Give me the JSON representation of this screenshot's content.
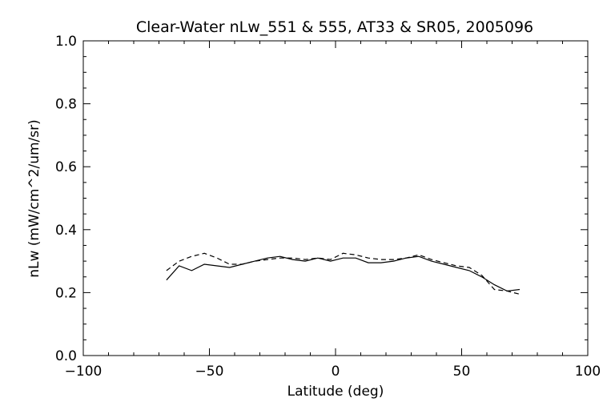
{
  "chart_data": {
    "type": "line",
    "title": "Clear-Water nLw_551 & 555, AT33 & SR05, 2005096",
    "xlabel": "Latitude (deg)",
    "ylabel": "nLw (mW/cm^2/um/sr)",
    "xlim": [
      -100,
      100
    ],
    "ylim": [
      0.0,
      1.0
    ],
    "x_ticks": [
      -100,
      -50,
      0,
      50,
      100
    ],
    "y_ticks": [
      0.0,
      0.2,
      0.4,
      0.6,
      0.8,
      1.0
    ],
    "x_tick_labels": [
      "−100",
      "−50",
      "0",
      "50",
      "100"
    ],
    "y_tick_labels": [
      "0.0",
      "0.2",
      "0.4",
      "0.6",
      "0.8",
      "1.0"
    ],
    "grid": false,
    "series": [
      {
        "style": "solid",
        "color": "#000000",
        "x": [
          -67,
          -62,
          -57,
          -52,
          -47,
          -42,
          -37,
          -32,
          -27,
          -22,
          -17,
          -12,
          -7,
          -2,
          3,
          8,
          13,
          18,
          23,
          28,
          33,
          38,
          43,
          48,
          53,
          58,
          63,
          68,
          73
        ],
        "y": [
          0.24,
          0.285,
          0.27,
          0.29,
          0.285,
          0.28,
          0.29,
          0.3,
          0.31,
          0.315,
          0.305,
          0.3,
          0.31,
          0.3,
          0.31,
          0.31,
          0.295,
          0.295,
          0.3,
          0.31,
          0.315,
          0.3,
          0.29,
          0.28,
          0.27,
          0.25,
          0.225,
          0.205,
          0.21
        ]
      },
      {
        "style": "dashed",
        "color": "#000000",
        "x": [
          -67,
          -62,
          -57,
          -52,
          -47,
          -42,
          -37,
          -32,
          -27,
          -22,
          -17,
          -12,
          -7,
          -2,
          3,
          8,
          13,
          18,
          23,
          28,
          33,
          38,
          43,
          48,
          53,
          58,
          63,
          68,
          73
        ],
        "y": [
          0.27,
          0.3,
          0.315,
          0.325,
          0.31,
          0.29,
          0.29,
          0.3,
          0.305,
          0.31,
          0.31,
          0.305,
          0.31,
          0.305,
          0.325,
          0.32,
          0.31,
          0.305,
          0.305,
          0.31,
          0.32,
          0.305,
          0.295,
          0.285,
          0.28,
          0.255,
          0.21,
          0.205,
          0.195
        ]
      }
    ]
  }
}
